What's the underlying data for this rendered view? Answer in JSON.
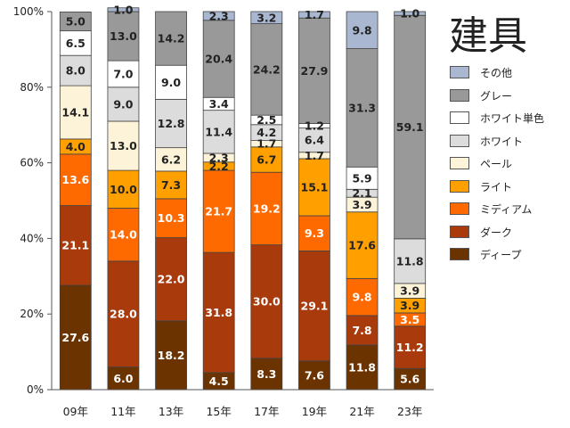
{
  "chart_data": {
    "type": "bar",
    "stacked": true,
    "title": "建具",
    "categories": [
      "09年",
      "11年",
      "13年",
      "15年",
      "17年",
      "19年",
      "21年",
      "23年"
    ],
    "y_ticks": [
      "0%",
      "20%",
      "40%",
      "60%",
      "80%",
      "100%"
    ],
    "ylim": [
      0,
      100
    ],
    "legend_position": "right",
    "series": [
      {
        "name": "ディープ",
        "color": "#6b3300",
        "values": [
          27.6,
          6.0,
          18.2,
          4.5,
          8.3,
          7.6,
          11.8,
          5.6
        ]
      },
      {
        "name": "ダーク",
        "color": "#a83a0c",
        "values": [
          21.1,
          28.0,
          22.0,
          31.8,
          30.0,
          29.1,
          7.8,
          11.2
        ]
      },
      {
        "name": "ミディアム",
        "color": "#ff6a00",
        "values": [
          13.6,
          14.0,
          10.3,
          21.7,
          19.2,
          9.3,
          9.8,
          3.5
        ]
      },
      {
        "name": "ライト",
        "color": "#ffa000",
        "values": [
          4.0,
          10.0,
          7.3,
          2.2,
          6.7,
          15.1,
          17.6,
          3.9
        ]
      },
      {
        "name": "ペール",
        "color": "#fdf3d8",
        "values": [
          14.1,
          13.0,
          6.2,
          2.3,
          1.7,
          1.7,
          3.9,
          3.9
        ]
      },
      {
        "name": "ホワイト",
        "color": "#dcdcdc",
        "values": [
          8.0,
          9.0,
          12.8,
          11.4,
          4.2,
          6.4,
          2.1,
          11.8
        ]
      },
      {
        "name": "ホワイト単色",
        "color": "#ffffff",
        "values": [
          6.5,
          7.0,
          9.0,
          3.4,
          2.5,
          1.2,
          5.9,
          0
        ]
      },
      {
        "name": "グレー",
        "color": "#999999",
        "values": [
          5.0,
          13.0,
          14.2,
          20.4,
          24.2,
          27.9,
          31.3,
          59.1
        ]
      },
      {
        "name": "その他",
        "color": "#a9b8d0",
        "values": [
          0,
          1.0,
          0,
          2.3,
          3.2,
          1.7,
          9.8,
          1.0
        ]
      }
    ],
    "grid": false
  }
}
